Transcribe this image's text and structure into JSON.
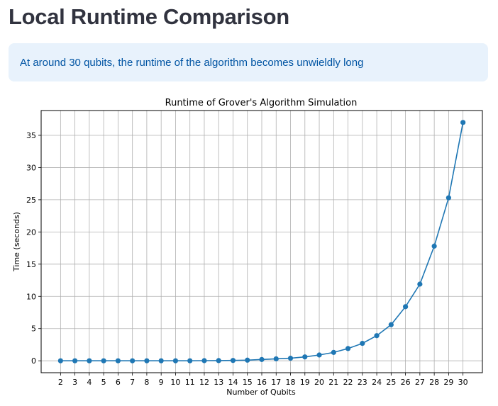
{
  "header": {
    "title": "Local Runtime Comparison"
  },
  "info": {
    "message": "At around 30 qubits, the runtime of the algorithm becomes unwieldly long"
  },
  "colors": {
    "series": "#1f77b4",
    "info_bg": "#e8f2fc",
    "info_text": "#0054a3",
    "title_text": "#31333f",
    "grid": "#b0b0b0"
  },
  "chart_data": {
    "type": "line",
    "title": "Runtime of Grover's Algorithm Simulation",
    "xlabel": "Number of Qubits",
    "ylabel": "Time (seconds)",
    "grid": true,
    "marker": "circle",
    "x": [
      2,
      3,
      4,
      5,
      6,
      7,
      8,
      9,
      10,
      11,
      12,
      13,
      14,
      15,
      16,
      17,
      18,
      19,
      20,
      21,
      22,
      23,
      24,
      25,
      26,
      27,
      28,
      29,
      30
    ],
    "series": [
      {
        "values": [
          0.0,
          0.0,
          0.0,
          0.0,
          0.0,
          0.0,
          0.0,
          0.0,
          0.0,
          0.0,
          0.02,
          0.03,
          0.05,
          0.1,
          0.2,
          0.3,
          0.4,
          0.6,
          0.9,
          1.3,
          1.9,
          2.7,
          3.9,
          5.6,
          8.4,
          11.9,
          17.8,
          25.3,
          37.0
        ]
      }
    ],
    "xticks": [
      2,
      3,
      4,
      5,
      6,
      7,
      8,
      9,
      10,
      11,
      12,
      13,
      14,
      15,
      16,
      17,
      18,
      19,
      20,
      21,
      22,
      23,
      24,
      25,
      26,
      27,
      28,
      29,
      30
    ],
    "yticks": [
      0,
      5,
      10,
      15,
      20,
      25,
      30,
      35
    ],
    "xlim": [
      0.65,
      31.35
    ],
    "ylim": [
      -1.85,
      38.85
    ]
  }
}
